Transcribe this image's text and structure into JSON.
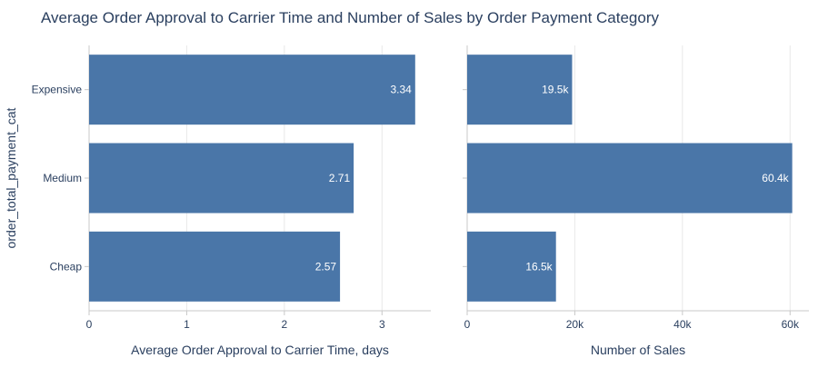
{
  "chart_data": {
    "type": "bar",
    "orientation": "horizontal",
    "title": "Average Order Approval to Carrier Time and Number of Sales by Order Payment Category",
    "ylabel": "order_total_payment_cat",
    "categories": [
      "Expensive",
      "Medium",
      "Cheap"
    ],
    "bar_color": "#4a76a8",
    "grid": true,
    "panels": [
      {
        "xlabel": "Average Order Approval to Carrier Time, days",
        "xlim": [
          0,
          3.5
        ],
        "xticks": [
          0,
          1,
          2,
          3
        ],
        "xtick_labels": [
          "0",
          "1",
          "2",
          "3"
        ],
        "values": [
          3.34,
          2.71,
          2.57
        ],
        "value_labels": [
          "3.34",
          "2.71",
          "2.57"
        ]
      },
      {
        "xlabel": "Number of Sales",
        "xlim": [
          0,
          63500
        ],
        "xticks": [
          0,
          20000,
          40000,
          60000
        ],
        "xtick_labels": [
          "0",
          "20k",
          "40k",
          "60k"
        ],
        "values": [
          19500,
          60400,
          16500
        ],
        "value_labels": [
          "19.5k",
          "60.4k",
          "16.5k"
        ]
      }
    ]
  }
}
